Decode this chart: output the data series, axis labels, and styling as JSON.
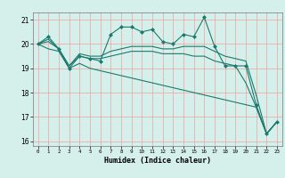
{
  "title": "",
  "xlabel": "Humidex (Indice chaleur)",
  "ylabel": "",
  "background_color": "#d5f0ea",
  "grid_color": "#f0a0a0",
  "line_color": "#1a7a6e",
  "xlim": [
    -0.5,
    23.5
  ],
  "ylim": [
    15.8,
    21.3
  ],
  "yticks": [
    16,
    17,
    18,
    19,
    20,
    21
  ],
  "xticks": [
    0,
    1,
    2,
    3,
    4,
    5,
    6,
    7,
    8,
    9,
    10,
    11,
    12,
    13,
    14,
    15,
    16,
    17,
    18,
    19,
    20,
    21,
    22,
    23
  ],
  "line1_x": [
    0,
    1,
    2,
    3,
    4,
    5,
    6,
    7,
    8,
    9,
    10,
    11,
    12,
    13,
    14,
    15,
    16,
    17,
    18,
    19,
    20,
    21,
    22,
    23
  ],
  "line1_y": [
    20.0,
    20.3,
    19.8,
    19.0,
    19.5,
    19.4,
    19.3,
    20.4,
    20.7,
    20.7,
    20.5,
    20.6,
    20.1,
    20.0,
    20.4,
    20.3,
    21.1,
    19.9,
    19.1,
    19.1,
    19.1,
    17.5,
    16.3,
    16.8
  ],
  "line2_x": [
    0,
    1,
    2,
    3,
    4,
    5,
    6,
    7,
    8,
    9,
    10,
    11,
    12,
    13,
    14,
    15,
    16,
    17,
    18,
    19,
    20,
    21,
    22,
    23
  ],
  "line2_y": [
    20.0,
    20.2,
    19.8,
    19.1,
    19.6,
    19.5,
    19.5,
    19.7,
    19.8,
    19.9,
    19.9,
    19.9,
    19.8,
    19.8,
    19.9,
    19.9,
    19.9,
    19.7,
    19.5,
    19.4,
    19.3,
    17.9,
    16.3,
    16.8
  ],
  "line3_x": [
    0,
    1,
    2,
    3,
    4,
    5,
    6,
    7,
    8,
    9,
    10,
    11,
    12,
    13,
    14,
    15,
    16,
    17,
    18,
    19,
    20,
    21,
    22,
    23
  ],
  "line3_y": [
    20.0,
    20.1,
    19.8,
    19.1,
    19.5,
    19.4,
    19.4,
    19.5,
    19.6,
    19.7,
    19.7,
    19.7,
    19.6,
    19.6,
    19.6,
    19.5,
    19.5,
    19.3,
    19.2,
    19.1,
    18.4,
    17.4,
    16.3,
    16.8
  ],
  "line4_x": [
    0,
    1,
    2,
    3,
    4,
    5,
    6,
    7,
    8,
    9,
    10,
    11,
    12,
    13,
    14,
    15,
    16,
    17,
    18,
    19,
    20,
    21,
    22,
    23
  ],
  "line4_y": [
    20.0,
    19.8,
    19.7,
    19.0,
    19.2,
    19.0,
    18.9,
    18.8,
    18.7,
    18.6,
    18.5,
    18.4,
    18.3,
    18.2,
    18.1,
    18.0,
    17.9,
    17.8,
    17.7,
    17.6,
    17.5,
    17.4,
    16.3,
    16.8
  ]
}
